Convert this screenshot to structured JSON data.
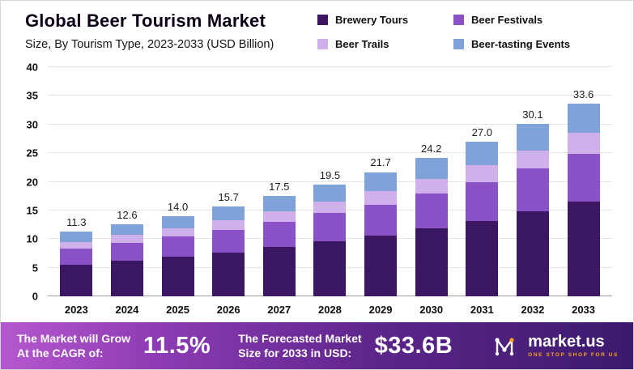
{
  "header": {
    "title": "Global Beer Tourism Market",
    "subtitle": "Size, By Tourism Type, 2023-2033 (USD Billion)"
  },
  "chart_data": {
    "type": "bar",
    "stacked": true,
    "title": "Global Beer Tourism Market",
    "subtitle": "Size, By Tourism Type, 2023-2033 (USD Billion)",
    "categories": [
      "2023",
      "2024",
      "2025",
      "2026",
      "2027",
      "2028",
      "2029",
      "2030",
      "2031",
      "2032",
      "2033"
    ],
    "series": [
      {
        "name": "Brewery Tours",
        "color": "#3b1663",
        "values": [
          5.5,
          6.2,
          6.9,
          7.7,
          8.6,
          9.6,
          10.6,
          11.9,
          13.2,
          14.8,
          16.5
        ]
      },
      {
        "name": "Beer Festivals",
        "color": "#8b51c6",
        "values": [
          2.8,
          3.1,
          3.5,
          3.9,
          4.4,
          4.9,
          5.4,
          6.0,
          6.8,
          7.5,
          8.4
        ]
      },
      {
        "name": "Beer Trails",
        "color": "#cfb0ea",
        "values": [
          1.2,
          1.4,
          1.5,
          1.7,
          1.9,
          2.1,
          2.4,
          2.6,
          2.9,
          3.2,
          3.6
        ]
      },
      {
        "name": "Beer-tasting Events",
        "color": "#7fa3d9",
        "values": [
          1.8,
          1.9,
          2.1,
          2.4,
          2.6,
          2.9,
          3.3,
          3.7,
          4.1,
          4.6,
          5.1
        ]
      }
    ],
    "totals": [
      "11.3",
      "12.6",
      "14.0",
      "15.7",
      "17.5",
      "19.5",
      "21.7",
      "24.2",
      "27.0",
      "30.1",
      "33.6"
    ],
    "xlabel": "",
    "ylabel": "",
    "ylim": [
      0,
      40
    ],
    "yticks": [
      0,
      5,
      10,
      15,
      20,
      25,
      30,
      35,
      40
    ],
    "grid": true,
    "legend_position": "top-right"
  },
  "footer": {
    "cagr_label_line1": "The Market will Grow",
    "cagr_label_line2": "At the CAGR of:",
    "cagr_value": "11.5%",
    "forecast_label_line1": "The Forecasted Market",
    "forecast_label_line2": "Size for 2033 in USD:",
    "forecast_value": "$33.6B",
    "logo_text": "market.us",
    "logo_tagline": "ONE STOP SHOP FOR US",
    "banner_gradient_start": "#b558cd",
    "banner_gradient_end": "#3c1a6e",
    "tagline_color": "#f6a31c"
  }
}
